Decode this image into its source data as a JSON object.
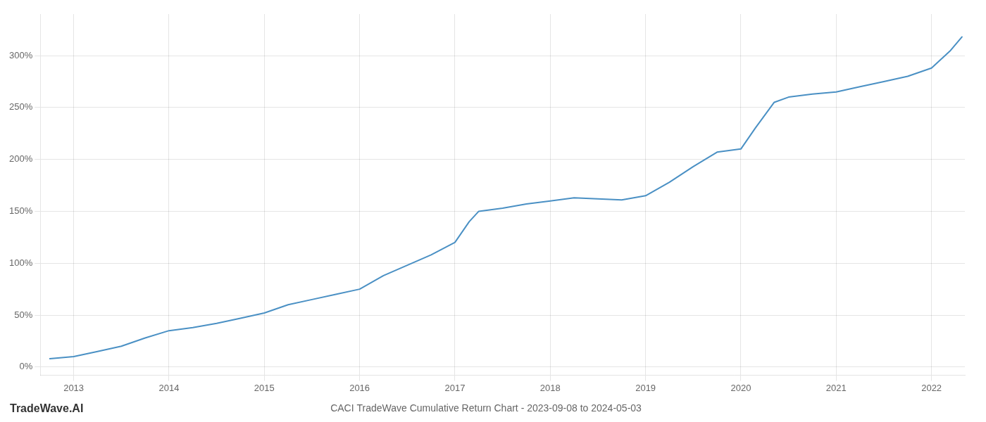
{
  "chart_data": {
    "type": "line",
    "title": "CACI TradeWave Cumulative Return Chart - 2023-09-08 to 2024-05-03",
    "annotations": [
      "TradeWave.AI"
    ],
    "color": "#4a90c4",
    "grid": true,
    "xlim": [
      2012.65,
      2022.35
    ],
    "ylim": [
      -8,
      340
    ],
    "xticks": [
      2013,
      2014,
      2015,
      2016,
      2017,
      2018,
      2019,
      2020,
      2021,
      2022
    ],
    "yticks": [
      {
        "value": 0,
        "label": "0%"
      },
      {
        "value": 50,
        "label": "50%"
      },
      {
        "value": 100,
        "label": "100%"
      },
      {
        "value": 150,
        "label": "150%"
      },
      {
        "value": 200,
        "label": "200%"
      },
      {
        "value": 250,
        "label": "250%"
      },
      {
        "value": 300,
        "label": "300%"
      }
    ],
    "x": [
      2012.75,
      2013.0,
      2013.25,
      2013.5,
      2013.75,
      2014.0,
      2014.25,
      2014.5,
      2014.75,
      2015.0,
      2015.25,
      2015.5,
      2015.75,
      2016.0,
      2016.25,
      2016.5,
      2016.75,
      2017.0,
      2017.15,
      2017.25,
      2017.5,
      2017.75,
      2018.0,
      2018.25,
      2018.5,
      2018.75,
      2019.0,
      2019.25,
      2019.5,
      2019.75,
      2020.0,
      2020.15,
      2020.35,
      2020.5,
      2020.75,
      2021.0,
      2021.25,
      2021.5,
      2021.75,
      2022.0,
      2022.2,
      2022.32
    ],
    "values": [
      8,
      10,
      15,
      20,
      28,
      35,
      38,
      42,
      47,
      52,
      60,
      65,
      70,
      75,
      88,
      98,
      108,
      120,
      140,
      150,
      153,
      157,
      160,
      163,
      162,
      161,
      165,
      178,
      193,
      207,
      210,
      230,
      255,
      260,
      263,
      265,
      270,
      275,
      280,
      288,
      305,
      318
    ]
  }
}
